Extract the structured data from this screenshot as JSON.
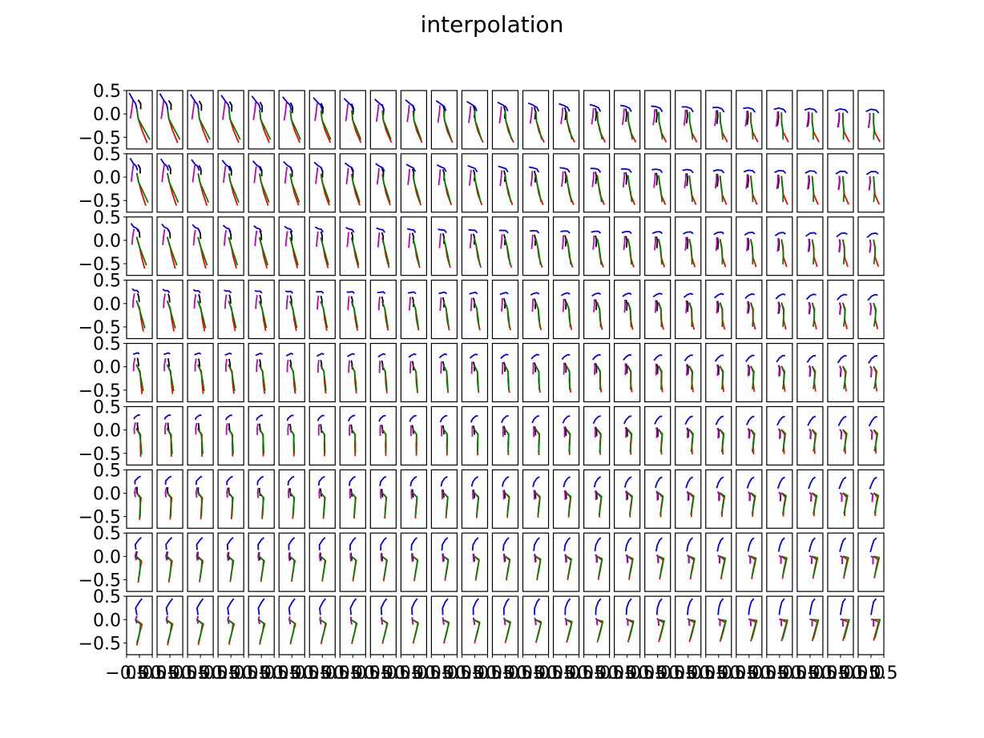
{
  "chart_data": {
    "type": "line",
    "title": "interpolation",
    "layout": {
      "rows": 9,
      "cols": 25
    },
    "xlim": [
      -0.5,
      0.5
    ],
    "ylim": [
      -0.75,
      0.5
    ],
    "y_tick_labels": [
      "0.5",
      "0.0",
      "−0.5"
    ],
    "x_tick_labels_first": [
      "−0.5",
      "0.0",
      "0.5"
    ],
    "x_tick_label_last": "0.5",
    "colors": {
      "black": "#000000",
      "magenta": "#bf00bf",
      "blue": "#0000ff",
      "red": "#ff0000",
      "green": "#008000"
    },
    "series_order": [
      "black",
      "magenta",
      "blue",
      "red",
      "green"
    ],
    "keyframes": {
      "start": {
        "black": [
          [
            -0.05,
            0.3
          ],
          [
            0.05,
            0.22
          ],
          [
            0.05,
            0.1
          ]
        ],
        "magenta": [
          [
            -0.25,
            0.3
          ],
          [
            -0.3,
            0.1
          ],
          [
            -0.35,
            -0.1
          ]
        ],
        "blue": [
          [
            -0.4,
            0.45
          ],
          [
            -0.25,
            0.3
          ],
          [
            -0.15,
            0.22
          ],
          [
            -0.1,
            0.1
          ]
        ],
        "red": [
          [
            -0.1,
            0.1
          ],
          [
            -0.05,
            -0.1
          ],
          [
            0.1,
            -0.35
          ],
          [
            0.3,
            -0.62
          ]
        ],
        "green": [
          [
            -0.1,
            0.1
          ],
          [
            -0.05,
            -0.1
          ],
          [
            0.15,
            -0.3
          ],
          [
            0.4,
            -0.55
          ]
        ]
      },
      "top_end": {
        "black": [
          [
            -0.05,
            0.02
          ],
          [
            -0.05,
            -0.12
          ],
          [
            -0.1,
            -0.3
          ]
        ],
        "magenta": [
          [
            -0.05,
            0.02
          ],
          [
            -0.05,
            -0.12
          ],
          [
            -0.1,
            -0.3
          ]
        ],
        "blue": [
          [
            -0.2,
            0.05
          ],
          [
            0.0,
            0.1
          ],
          [
            0.2,
            0.08
          ],
          [
            0.3,
            0.02
          ]
        ],
        "red": [
          [
            0.1,
            0.02
          ],
          [
            0.1,
            -0.2
          ],
          [
            0.15,
            -0.4
          ],
          [
            0.35,
            -0.6
          ]
        ],
        "green": [
          [
            0.1,
            0.02
          ],
          [
            0.1,
            -0.2
          ],
          [
            0.12,
            -0.35
          ],
          [
            0.1,
            -0.55
          ]
        ]
      },
      "bottom_start": {
        "black": [
          [
            -0.1,
            0.08
          ],
          [
            -0.15,
            0.0
          ],
          [
            -0.1,
            -0.08
          ]
        ],
        "magenta": [
          [
            -0.1,
            0.08
          ],
          [
            -0.15,
            0.0
          ],
          [
            -0.1,
            -0.08
          ]
        ],
        "blue": [
          [
            -0.1,
            0.1
          ],
          [
            -0.15,
            0.25
          ],
          [
            0.0,
            0.38
          ],
          [
            0.1,
            0.45
          ]
        ],
        "red": [
          [
            -0.15,
            0.0
          ],
          [
            0.1,
            -0.1
          ],
          [
            0.0,
            -0.3
          ],
          [
            -0.1,
            -0.55
          ]
        ],
        "green": [
          [
            -0.15,
            0.0
          ],
          [
            0.05,
            -0.1
          ],
          [
            0.0,
            -0.3
          ],
          [
            -0.1,
            -0.5
          ]
        ]
      },
      "bottom_end": {
        "black": [
          [
            0.0,
            0.0
          ],
          [
            0.1,
            0.0
          ],
          [
            0.1,
            -0.15
          ]
        ],
        "magenta": [
          [
            0.0,
            0.0
          ],
          [
            0.1,
            0.0
          ],
          [
            0.1,
            -0.15
          ]
        ],
        "blue": [
          [
            0.0,
            0.1
          ],
          [
            0.05,
            0.25
          ],
          [
            0.1,
            0.38
          ],
          [
            0.2,
            0.45
          ]
        ],
        "red": [
          [
            0.1,
            0.0
          ],
          [
            0.3,
            -0.05
          ],
          [
            0.2,
            -0.25
          ],
          [
            0.1,
            -0.45
          ]
        ],
        "green": [
          [
            0.1,
            0.0
          ],
          [
            0.35,
            0.0
          ],
          [
            0.25,
            -0.2
          ],
          [
            0.15,
            -0.4
          ]
        ]
      }
    }
  }
}
